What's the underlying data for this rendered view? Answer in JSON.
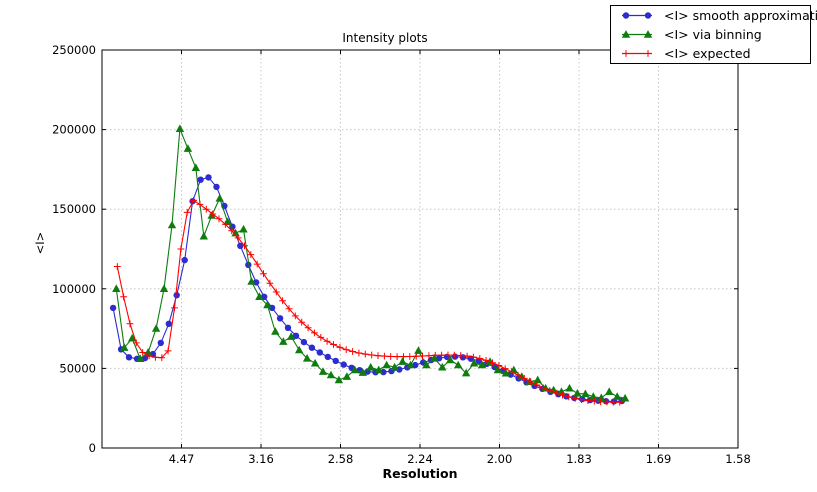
{
  "figure": {
    "background": "#ffffff"
  },
  "chart_data": {
    "type": "line",
    "title": "Intensity plots",
    "xlabel": "Resolution",
    "ylabel": "<I>",
    "grid": true,
    "legend_position": "upper right",
    "x_value_space": "inverse d-squared; tick labels show resolution d",
    "x_axis": {
      "lim": [
        0,
        0.4
      ],
      "ticks": [
        {
          "value": 0.05,
          "label": "4.47"
        },
        {
          "value": 0.1,
          "label": "3.16"
        },
        {
          "value": 0.15,
          "label": "2.58"
        },
        {
          "value": 0.2,
          "label": "2.24"
        },
        {
          "value": 0.25,
          "label": "2.00"
        },
        {
          "value": 0.3,
          "label": "1.83"
        },
        {
          "value": 0.35,
          "label": "1.69"
        },
        {
          "value": 0.4,
          "label": "1.58"
        }
      ]
    },
    "y_axis": {
      "lim": [
        0,
        250000
      ],
      "ticks": [
        {
          "value": 0,
          "label": "0"
        },
        {
          "value": 50000,
          "label": "50000"
        },
        {
          "value": 100000,
          "label": "100000"
        },
        {
          "value": 150000,
          "label": "150000"
        },
        {
          "value": 200000,
          "label": "200000"
        },
        {
          "value": 250000,
          "label": "250000"
        }
      ]
    },
    "series": [
      {
        "name": "<I> smooth approximation",
        "color": "#2c2cd0",
        "marker": "circle",
        "x": [
          0.007,
          0.012,
          0.017,
          0.022,
          0.027,
          0.032,
          0.037,
          0.042,
          0.047,
          0.052,
          0.057,
          0.062,
          0.067,
          0.072,
          0.077,
          0.082,
          0.087,
          0.092,
          0.097,
          0.102,
          0.107,
          0.112,
          0.117,
          0.122,
          0.127,
          0.132,
          0.137,
          0.142,
          0.147,
          0.152,
          0.157,
          0.162,
          0.167,
          0.172,
          0.177,
          0.182,
          0.187,
          0.192,
          0.197,
          0.202,
          0.207,
          0.212,
          0.217,
          0.222,
          0.227,
          0.232,
          0.237,
          0.242,
          0.247,
          0.252,
          0.257,
          0.262,
          0.267,
          0.272,
          0.277,
          0.282,
          0.287,
          0.292,
          0.297,
          0.302,
          0.307,
          0.312,
          0.317,
          0.322,
          0.327
        ],
        "y": [
          88000,
          62000,
          57000,
          56000,
          56500,
          59000,
          66000,
          78000,
          96000,
          118000,
          155000,
          168500,
          170000,
          164000,
          152000,
          139000,
          127000,
          115000,
          104000,
          95000,
          88000,
          81500,
          75500,
          70500,
          66500,
          63000,
          60000,
          57200,
          54700,
          52400,
          50400,
          48900,
          48000,
          47600,
          47700,
          48300,
          49300,
          50600,
          52100,
          53700,
          55200,
          56400,
          57200,
          57400,
          57000,
          56100,
          54700,
          52900,
          50800,
          48500,
          46100,
          43700,
          41300,
          39100,
          37100,
          35300,
          33800,
          32500,
          31500,
          30700,
          30100,
          29700,
          29400,
          29300,
          29500
        ]
      },
      {
        "name": "<I> via binning",
        "color": "#0e7d0e",
        "marker": "triangle",
        "x": [
          0.009,
          0.014,
          0.019,
          0.024,
          0.029,
          0.034,
          0.039,
          0.044,
          0.049,
          0.054,
          0.059,
          0.064,
          0.069,
          0.074,
          0.079,
          0.084,
          0.089,
          0.094,
          0.099,
          0.104,
          0.109,
          0.114,
          0.119,
          0.124,
          0.129,
          0.134,
          0.139,
          0.144,
          0.149,
          0.154,
          0.159,
          0.164,
          0.169,
          0.174,
          0.179,
          0.184,
          0.189,
          0.194,
          0.199,
          0.204,
          0.209,
          0.214,
          0.219,
          0.224,
          0.229,
          0.234,
          0.239,
          0.244,
          0.249,
          0.254,
          0.259,
          0.264,
          0.269,
          0.274,
          0.279,
          0.284,
          0.289,
          0.294,
          0.299,
          0.304,
          0.309,
          0.314,
          0.319,
          0.324,
          0.329
        ],
        "y": [
          100000,
          63000,
          68900,
          56000,
          60000,
          75000,
          100000,
          140000,
          200500,
          188000,
          176000,
          133000,
          146000,
          156800,
          142100,
          134900,
          137400,
          104500,
          95000,
          89800,
          73100,
          66800,
          69900,
          61500,
          56300,
          53200,
          47900,
          45800,
          42700,
          44800,
          49000,
          47300,
          50700,
          49000,
          52100,
          50700,
          54200,
          52100,
          61100,
          52100,
          56300,
          50700,
          55300,
          52100,
          47000,
          53200,
          52100,
          54200,
          49000,
          46900,
          49000,
          44800,
          41600,
          42700,
          37500,
          36400,
          35300,
          37500,
          34300,
          34000,
          32200,
          31500,
          35300,
          32200,
          31200
        ]
      },
      {
        "name": "<I> expected",
        "color": "#ff0000",
        "marker": "plus",
        "x": [
          0.0096,
          0.0136,
          0.0176,
          0.0216,
          0.0256,
          0.0296,
          0.0336,
          0.0376,
          0.0416,
          0.0456,
          0.0496,
          0.0536,
          0.0576,
          0.0616,
          0.0656,
          0.0696,
          0.0736,
          0.0776,
          0.0816,
          0.0856,
          0.0896,
          0.0936,
          0.0976,
          0.1016,
          0.1056,
          0.1096,
          0.1136,
          0.1176,
          0.1216,
          0.1256,
          0.1296,
          0.1336,
          0.1376,
          0.1416,
          0.1456,
          0.1496,
          0.1536,
          0.1576,
          0.1616,
          0.1656,
          0.1696,
          0.1736,
          0.1776,
          0.1816,
          0.1856,
          0.1896,
          0.1936,
          0.1976,
          0.2016,
          0.2056,
          0.2096,
          0.2136,
          0.2176,
          0.2216,
          0.2256,
          0.2296,
          0.2336,
          0.2376,
          0.2416,
          0.2456,
          0.2496,
          0.2536,
          0.2576,
          0.2616,
          0.2656,
          0.2696,
          0.2736,
          0.2776,
          0.2816,
          0.2856,
          0.2896,
          0.2936,
          0.2976,
          0.3016,
          0.3056,
          0.3096,
          0.3136,
          0.3176,
          0.3216,
          0.3256
        ],
        "y": [
          114000,
          95000,
          78000,
          66000,
          60000,
          57800,
          57000,
          56700,
          61000,
          88000,
          125000,
          148000,
          155500,
          153000,
          150000,
          147000,
          144000,
          140500,
          136500,
          132000,
          127000,
          121500,
          115500,
          109500,
          103500,
          98000,
          92500,
          87500,
          83000,
          79000,
          75500,
          72300,
          69500,
          67000,
          65000,
          63200,
          61800,
          60600,
          59700,
          59000,
          58400,
          58000,
          57700,
          57500,
          57400,
          57400,
          57500,
          57600,
          57800,
          58000,
          58200,
          58300,
          58400,
          58300,
          58100,
          57700,
          57100,
          56200,
          55000,
          53500,
          51800,
          49900,
          47900,
          45800,
          43700,
          41600,
          39600,
          37700,
          36000,
          34500,
          33200,
          32100,
          31200,
          30400,
          29800,
          29400,
          29100,
          28900,
          28800,
          28800
        ]
      }
    ]
  }
}
